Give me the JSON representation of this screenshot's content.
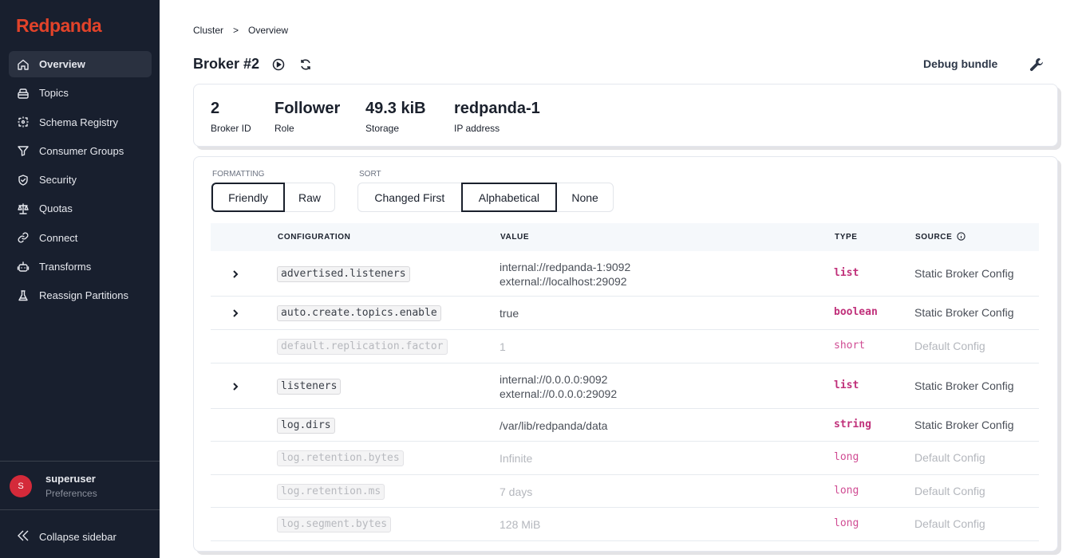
{
  "sidebar": {
    "logo": "Redpanda",
    "items": [
      {
        "label": "Overview",
        "icon": "home-icon",
        "active": true
      },
      {
        "label": "Topics",
        "icon": "topics-icon"
      },
      {
        "label": "Schema Registry",
        "icon": "schema-icon"
      },
      {
        "label": "Consumer Groups",
        "icon": "filter-icon"
      },
      {
        "label": "Security",
        "icon": "shield-icon"
      },
      {
        "label": "Quotas",
        "icon": "scale-icon"
      },
      {
        "label": "Connect",
        "icon": "link-icon"
      },
      {
        "label": "Transforms",
        "icon": "robot-icon"
      },
      {
        "label": "Reassign Partitions",
        "icon": "flask-icon"
      }
    ],
    "user": {
      "initial": "S",
      "name": "superuser",
      "sub": "Preferences"
    },
    "collapse": "Collapse sidebar"
  },
  "breadcrumb": [
    "Cluster",
    "Overview"
  ],
  "header": {
    "title": "Broker #2",
    "debug": "Debug bundle"
  },
  "broker": [
    {
      "value": "2",
      "label": "Broker ID"
    },
    {
      "value": "Follower",
      "label": "Role"
    },
    {
      "value": "49.3 kiB",
      "label": "Storage"
    },
    {
      "value": "redpanda-1",
      "label": "IP address"
    }
  ],
  "formatting": {
    "label": "FORMATTING",
    "options": [
      "Friendly",
      "Raw"
    ],
    "selected": "Friendly"
  },
  "sort": {
    "label": "SORT",
    "options": [
      "Changed First",
      "Alphabetical",
      "None"
    ],
    "selected": "Alphabetical"
  },
  "table": {
    "columns": [
      "CONFIGURATION",
      "VALUE",
      "TYPE",
      "SOURCE"
    ],
    "rows": [
      {
        "name": "advertised.listeners",
        "value": [
          "internal://redpanda-1:9092",
          "external://localhost:29092"
        ],
        "type": "list",
        "source": "Static Broker Config",
        "expandable": true,
        "dim": false
      },
      {
        "name": "auto.create.topics.enable",
        "value": [
          "true"
        ],
        "type": "boolean",
        "source": "Static Broker Config",
        "expandable": true,
        "dim": false
      },
      {
        "name": "default.replication.factor",
        "value": [
          "1"
        ],
        "type": "short",
        "source": "Default Config",
        "expandable": false,
        "dim": true
      },
      {
        "name": "listeners",
        "value": [
          "internal://0.0.0.0:9092",
          "external://0.0.0.0:29092"
        ],
        "type": "list",
        "source": "Static Broker Config",
        "expandable": true,
        "dim": false
      },
      {
        "name": "log.dirs",
        "value": [
          "/var/lib/redpanda/data"
        ],
        "type": "string",
        "source": "Static Broker Config",
        "expandable": false,
        "dim": false
      },
      {
        "name": "log.retention.bytes",
        "value": [
          "Infinite"
        ],
        "type": "long",
        "source": "Default Config",
        "expandable": false,
        "dim": true
      },
      {
        "name": "log.retention.ms",
        "value": [
          "7 days"
        ],
        "type": "long",
        "source": "Default Config",
        "expandable": false,
        "dim": true
      },
      {
        "name": "log.segment.bytes",
        "value": [
          "128 MiB"
        ],
        "type": "long",
        "source": "Default Config",
        "expandable": false,
        "dim": true
      }
    ]
  }
}
